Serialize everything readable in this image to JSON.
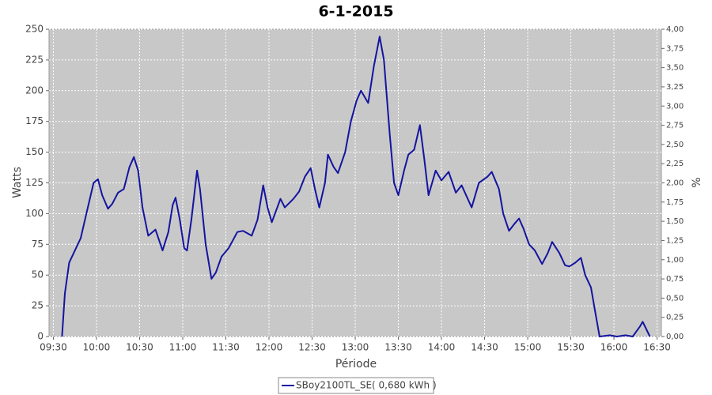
{
  "chart_data": {
    "type": "line",
    "title": "6-1-2015",
    "xlabel": "Période",
    "ylabel": "Watts",
    "y2label": "%",
    "x": [
      "09:36",
      "09:38",
      "09:41",
      "09:45",
      "09:49",
      "09:53",
      "09:58",
      "10:01",
      "10:04",
      "10:08",
      "10:11",
      "10:15",
      "10:19",
      "10:23",
      "10:26",
      "10:29",
      "10:32",
      "10:36",
      "10:41",
      "10:46",
      "10:50",
      "10:53",
      "10:55",
      "10:58",
      "11:01",
      "11:03",
      "11:06",
      "11:10",
      "11:12",
      "11:16",
      "11:20",
      "11:23",
      "11:27",
      "11:32",
      "11:38",
      "11:42",
      "11:48",
      "11:52",
      "11:56",
      "11:59",
      "12:02",
      "12:08",
      "12:11",
      "12:17",
      "12:21",
      "12:25",
      "12:29",
      "12:32",
      "12:35",
      "12:39",
      "12:41",
      "12:45",
      "12:48",
      "12:53",
      "12:57",
      "13:01",
      "13:04",
      "13:09",
      "13:13",
      "13:17",
      "13:20",
      "13:24",
      "13:27",
      "13:30",
      "13:34",
      "13:37",
      "13:41",
      "13:45",
      "13:48",
      "13:51",
      "13:56",
      "14:00",
      "14:05",
      "14:10",
      "14:14",
      "14:21",
      "14:26",
      "14:32",
      "14:35",
      "14:40",
      "14:43",
      "14:47",
      "14:51",
      "14:54",
      "14:57",
      "15:01",
      "15:05",
      "15:10",
      "15:14",
      "15:17",
      "15:22",
      "15:26",
      "15:29",
      "15:33",
      "15:37",
      "15:40",
      "15:44",
      "15:47",
      "15:50",
      "15:57",
      "16:02",
      "16:08",
      "16:13",
      "16:18",
      "16:20",
      "16:25"
    ],
    "series": [
      {
        "name": "SBoy2100TL_SE( 0,680 kWh )",
        "color": "#1414a0",
        "values": [
          0,
          35,
          60,
          70,
          80,
          100,
          125,
          128,
          115,
          104,
          108,
          117,
          120,
          138,
          146,
          135,
          105,
          82,
          87,
          70,
          85,
          107,
          113,
          95,
          72,
          70,
          95,
          135,
          120,
          75,
          47,
          52,
          65,
          72,
          85,
          86,
          82,
          95,
          123,
          105,
          93,
          112,
          105,
          112,
          118,
          130,
          137,
          120,
          105,
          125,
          148,
          138,
          133,
          150,
          175,
          192,
          200,
          190,
          220,
          244,
          225,
          165,
          125,
          115,
          135,
          148,
          152,
          172,
          145,
          115,
          135,
          127,
          134,
          117,
          123,
          105,
          125,
          130,
          134,
          120,
          100,
          86,
          92,
          96,
          88,
          75,
          70,
          59,
          68,
          77,
          68,
          58,
          57,
          60,
          64,
          50,
          40,
          20,
          0,
          1,
          0,
          1,
          0,
          8,
          12,
          0
        ]
      }
    ],
    "xlim": [
      "09:27",
      "16:33"
    ],
    "xticks": [
      "09:30",
      "10:00",
      "10:30",
      "11:00",
      "11:30",
      "12:00",
      "12:30",
      "13:00",
      "13:30",
      "14:00",
      "14:30",
      "15:00",
      "15:30",
      "16:00",
      "16:30"
    ],
    "ylim": [
      0,
      250
    ],
    "yticks": [
      0,
      25,
      50,
      75,
      100,
      125,
      150,
      175,
      200,
      225,
      250
    ],
    "y2lim": [
      0,
      4
    ],
    "y2ticks": [
      {
        "value": 0,
        "label": "0,00"
      },
      {
        "value": 0.25,
        "label": "0,25"
      },
      {
        "value": 0.5,
        "label": "0,50"
      },
      {
        "value": 0.75,
        "label": "0,75"
      },
      {
        "value": 1,
        "label": "1,00"
      },
      {
        "value": 1.25,
        "label": "1,25"
      },
      {
        "value": 1.5,
        "label": "1,50"
      },
      {
        "value": 1.75,
        "label": "1,75"
      },
      {
        "value": 2,
        "label": "2,00"
      },
      {
        "value": 2.25,
        "label": "2,25"
      },
      {
        "value": 2.5,
        "label": "2,50"
      },
      {
        "value": 2.75,
        "label": "2,75"
      },
      {
        "value": 3,
        "label": "3,00"
      },
      {
        "value": 3.25,
        "label": "3,25"
      },
      {
        "value": 3.5,
        "label": "3,50"
      },
      {
        "value": 3.75,
        "label": "3,75"
      },
      {
        "value": 4,
        "label": "4,00"
      }
    ],
    "grid": true,
    "legend": "bottom"
  }
}
